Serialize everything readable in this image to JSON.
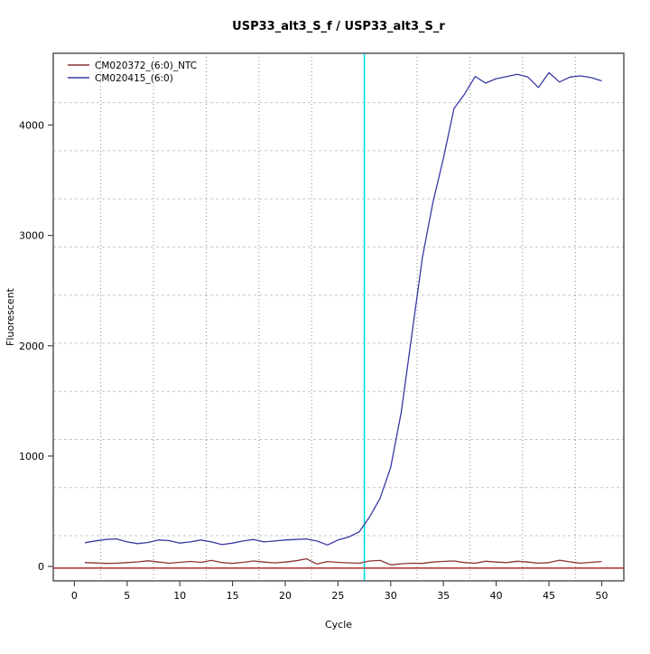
{
  "window": {
    "background": "#ffffff"
  },
  "chart_data": {
    "type": "line",
    "title": "USP33_alt3_S_f / USP33_alt3_S_r",
    "xlabel": "Cycle",
    "ylabel": "Fluorescent",
    "xlim": [
      -2.0,
      52.1
    ],
    "ylim": [
      -130,
      4650
    ],
    "x_ticks": [
      0,
      5,
      10,
      15,
      20,
      25,
      30,
      35,
      40,
      45,
      50
    ],
    "y_ticks": [
      0,
      1000,
      2000,
      3000,
      4000
    ],
    "grid": {
      "on": true,
      "vertical_cycles": [
        2.5,
        7.5,
        12.5,
        17.5,
        22.5,
        32.5,
        37.5,
        42.5,
        47.5
      ],
      "horizontal_values": [
        279,
        715,
        1151,
        1587,
        2023,
        2459,
        2895,
        3331,
        3767,
        4203
      ],
      "vertical_color": "#8a8a8a",
      "horizontal_color": "#c6c6c6"
    },
    "ct_marker": {
      "x": 27.5,
      "color": "#00e1e6",
      "label": "threshold-cycle-line"
    },
    "threshold_line": {
      "y": -15,
      "color": "#bc4a4a"
    },
    "x": [
      1,
      2,
      3,
      4,
      5,
      6,
      7,
      8,
      9,
      10,
      11,
      12,
      13,
      14,
      15,
      16,
      17,
      18,
      19,
      20,
      21,
      22,
      23,
      24,
      25,
      26,
      27,
      28,
      29,
      30,
      31,
      32,
      33,
      34,
      35,
      36,
      37,
      38,
      39,
      40,
      41,
      42,
      43,
      44,
      45,
      46,
      47,
      48,
      49,
      50
    ],
    "series": [
      {
        "name": "CM020372_(6:0)_NTC",
        "color": "#8b3434",
        "values": [
          35,
          32,
          28,
          30,
          35,
          42,
          52,
          40,
          30,
          38,
          46,
          38,
          55,
          35,
          28,
          38,
          50,
          40,
          33,
          40,
          52,
          70,
          22,
          45,
          38,
          33,
          30,
          50,
          55,
          15,
          25,
          30,
          28,
          40,
          46,
          50,
          35,
          30,
          48,
          40,
          35,
          48,
          40,
          30,
          35,
          57,
          42,
          30,
          38,
          45
        ]
      },
      {
        "name": "CM020415_(6:0)",
        "color": "#3939a3",
        "values": [
          215,
          232,
          245,
          250,
          223,
          207,
          218,
          240,
          234,
          212,
          223,
          240,
          223,
          198,
          212,
          231,
          245,
          223,
          231,
          240,
          245,
          250,
          231,
          195,
          240,
          267,
          313,
          450,
          620,
          900,
          1400,
          2100,
          2800,
          3300,
          3700,
          4150,
          4280,
          4440,
          4380,
          4420,
          4440,
          4460,
          4435,
          4340,
          4475,
          4390,
          4435,
          4445,
          4430,
          4400
        ]
      }
    ],
    "legend_position": "top-left",
    "axis_color": "#4a4a4a"
  }
}
